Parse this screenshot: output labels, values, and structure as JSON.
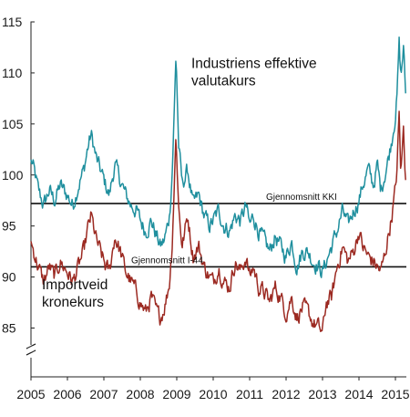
{
  "chart_data": {
    "type": "line",
    "x_range": [
      2005.0,
      2015.3
    ],
    "ylim": [
      85,
      115
    ],
    "y_axis_floor": 82,
    "grid": false,
    "legend": "none",
    "y_ticks": [
      85,
      90,
      95,
      100,
      105,
      110,
      115
    ],
    "x_ticks": [
      2005,
      2006,
      2007,
      2008,
      2009,
      2010,
      2011,
      2012,
      2013,
      2014,
      2015
    ],
    "x_tick_labels": [
      "2005",
      "2006",
      "2007",
      "2008",
      "2009",
      "2010",
      "2011",
      "2012",
      "2013",
      "2014",
      "2015"
    ],
    "series": [
      {
        "id": "kki",
        "color": "#1f8f9e",
        "x": [
          2005.0,
          2005.08,
          2005.2,
          2005.35,
          2005.5,
          2005.65,
          2005.8,
          2006.0,
          2006.15,
          2006.3,
          2006.45,
          2006.55,
          2006.65,
          2006.8,
          2006.95,
          2007.05,
          2007.15,
          2007.3,
          2007.45,
          2007.6,
          2007.75,
          2007.9,
          2008.0,
          2008.15,
          2008.3,
          2008.45,
          2008.55,
          2008.65,
          2008.72,
          2008.8,
          2008.87,
          2008.93,
          2008.98,
          2009.05,
          2009.15,
          2009.3,
          2009.45,
          2009.6,
          2009.75,
          2009.9,
          2010.0,
          2010.15,
          2010.3,
          2010.45,
          2010.6,
          2010.75,
          2010.9,
          2011.0,
          2011.1,
          2011.25,
          2011.4,
          2011.55,
          2011.7,
          2011.85,
          2012.0,
          2012.15,
          2012.3,
          2012.45,
          2012.6,
          2012.75,
          2012.9,
          2013.0,
          2013.1,
          2013.25,
          2013.4,
          2013.55,
          2013.7,
          2013.85,
          2014.0,
          2014.1,
          2014.25,
          2014.4,
          2014.5,
          2014.6,
          2014.7,
          2014.8,
          2014.9,
          2015.0,
          2015.05,
          2015.1,
          2015.15,
          2015.22,
          2015.28
        ],
        "y": [
          101.5,
          100.5,
          98.5,
          97.0,
          98.5,
          97.5,
          99.0,
          98.0,
          97.0,
          99.0,
          100.5,
          102.5,
          104.0,
          101.5,
          100.0,
          99.0,
          98.0,
          101.0,
          99.5,
          98.0,
          97.0,
          96.5,
          95.5,
          94.5,
          95.5,
          94.0,
          93.0,
          93.5,
          94.5,
          96.0,
          100.0,
          106.0,
          112.0,
          103.0,
          99.0,
          100.5,
          97.0,
          98.0,
          96.0,
          95.0,
          95.5,
          96.5,
          95.0,
          94.5,
          96.0,
          95.5,
          97.0,
          95.0,
          96.0,
          94.5,
          93.5,
          92.5,
          94.0,
          93.0,
          92.0,
          93.5,
          91.0,
          92.5,
          92.5,
          91.5,
          91.0,
          90.5,
          91.5,
          93.0,
          94.5,
          96.5,
          95.0,
          96.5,
          97.5,
          99.0,
          100.5,
          99.0,
          101.0,
          98.5,
          100.0,
          101.5,
          103.5,
          106.0,
          108.0,
          113.0,
          109.5,
          112.5,
          108.0
        ]
      },
      {
        "id": "i44",
        "color": "#9c2a22",
        "x": [
          2005.0,
          2005.08,
          2005.2,
          2005.35,
          2005.5,
          2005.65,
          2005.8,
          2006.0,
          2006.15,
          2006.3,
          2006.45,
          2006.55,
          2006.65,
          2006.8,
          2006.95,
          2007.05,
          2007.15,
          2007.3,
          2007.45,
          2007.6,
          2007.75,
          2007.9,
          2008.0,
          2008.15,
          2008.3,
          2008.45,
          2008.55,
          2008.65,
          2008.72,
          2008.8,
          2008.87,
          2008.93,
          2008.98,
          2009.05,
          2009.15,
          2009.3,
          2009.45,
          2009.6,
          2009.75,
          2009.9,
          2010.0,
          2010.15,
          2010.3,
          2010.45,
          2010.6,
          2010.75,
          2010.9,
          2011.0,
          2011.1,
          2011.25,
          2011.4,
          2011.55,
          2011.7,
          2011.85,
          2012.0,
          2012.15,
          2012.3,
          2012.45,
          2012.6,
          2012.75,
          2012.9,
          2013.0,
          2013.1,
          2013.25,
          2013.4,
          2013.55,
          2013.7,
          2013.85,
          2014.0,
          2014.1,
          2014.25,
          2014.4,
          2014.5,
          2014.6,
          2014.7,
          2014.8,
          2014.9,
          2015.0,
          2015.05,
          2015.1,
          2015.15,
          2015.22,
          2015.28
        ],
        "y": [
          93.5,
          92.5,
          91.0,
          89.5,
          91.0,
          90.0,
          91.5,
          90.5,
          89.5,
          91.0,
          92.5,
          94.5,
          96.0,
          93.5,
          92.0,
          91.0,
          90.5,
          94.0,
          92.5,
          90.5,
          89.5,
          88.5,
          87.5,
          86.5,
          88.0,
          86.5,
          86.0,
          87.0,
          88.0,
          89.5,
          93.0,
          99.0,
          104.0,
          97.0,
          93.0,
          96.0,
          92.0,
          93.0,
          91.0,
          90.0,
          89.5,
          91.0,
          89.5,
          89.0,
          91.5,
          90.5,
          92.0,
          90.0,
          91.0,
          89.0,
          88.5,
          87.5,
          89.0,
          88.0,
          86.5,
          88.0,
          86.0,
          87.0,
          86.5,
          85.5,
          85.0,
          84.5,
          87.5,
          88.0,
          91.0,
          93.0,
          91.5,
          92.5,
          94.5,
          93.0,
          92.0,
          91.5,
          91.0,
          90.5,
          92.0,
          94.0,
          96.0,
          98.5,
          101.0,
          106.0,
          100.0,
          104.5,
          99.5
        ]
      }
    ],
    "reference_lines": [
      {
        "id": "avg-kki",
        "y": 97.2,
        "label": "Gjennomsnitt KKI",
        "label_x": 2011.45
      },
      {
        "id": "avg-i44",
        "y": 91.0,
        "label": "Gjennomsnitt I-44",
        "label_x": 2007.75
      }
    ],
    "annotations": [
      {
        "id": "industry-label",
        "lines": [
          "Industriens effektive",
          "valutakurs"
        ],
        "x": 2009.4,
        "y": 110.5
      },
      {
        "id": "import-label",
        "lines": [
          "Importveid",
          "kronekurs"
        ],
        "x": 2005.3,
        "y": 88.8
      }
    ]
  }
}
